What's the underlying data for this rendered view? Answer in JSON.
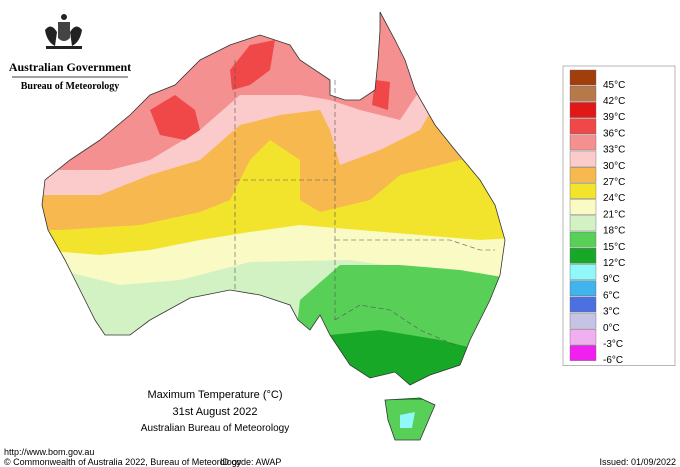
{
  "header": {
    "government": "Australian Government",
    "agency": "Bureau of Meteorology"
  },
  "map": {
    "title": "Maximum Temperature (°C)",
    "date": "31st August 2022",
    "source": "Australian Bureau of Meteorology"
  },
  "legend": [
    {
      "label": "45°C",
      "color": "#a23d0c"
    },
    {
      "label": "42°C",
      "color": "#b8794a"
    },
    {
      "label": "39°C",
      "color": "#e01818"
    },
    {
      "label": "36°C",
      "color": "#f04848"
    },
    {
      "label": "33°C",
      "color": "#f59090"
    },
    {
      "label": "30°C",
      "color": "#fbcaca"
    },
    {
      "label": "27°C",
      "color": "#f8b850"
    },
    {
      "label": "24°C",
      "color": "#f2e42c"
    },
    {
      "label": "21°C",
      "color": "#fafac4"
    },
    {
      "label": "18°C",
      "color": "#d2f2c4"
    },
    {
      "label": "15°C",
      "color": "#58d058"
    },
    {
      "label": "12°C",
      "color": "#18a828"
    },
    {
      "label": "9°C",
      "color": "#90f8f8"
    },
    {
      "label": "6°C",
      "color": "#40b4ec"
    },
    {
      "label": "3°C",
      "color": "#4c70e0"
    },
    {
      "label": "0°C",
      "color": "#c4c4e4"
    },
    {
      "label": "-3°C",
      "color": "#f0b0f0"
    },
    {
      "label": "-6°C",
      "color": "#f020f0"
    }
  ],
  "footer": {
    "url": "http://www.bom.gov.au",
    "copyright": "© Commonwealth of Australia 2022, Bureau of Meteorology",
    "id": "ID code: AWAP",
    "issued": "Issued: 01/09/2022"
  }
}
